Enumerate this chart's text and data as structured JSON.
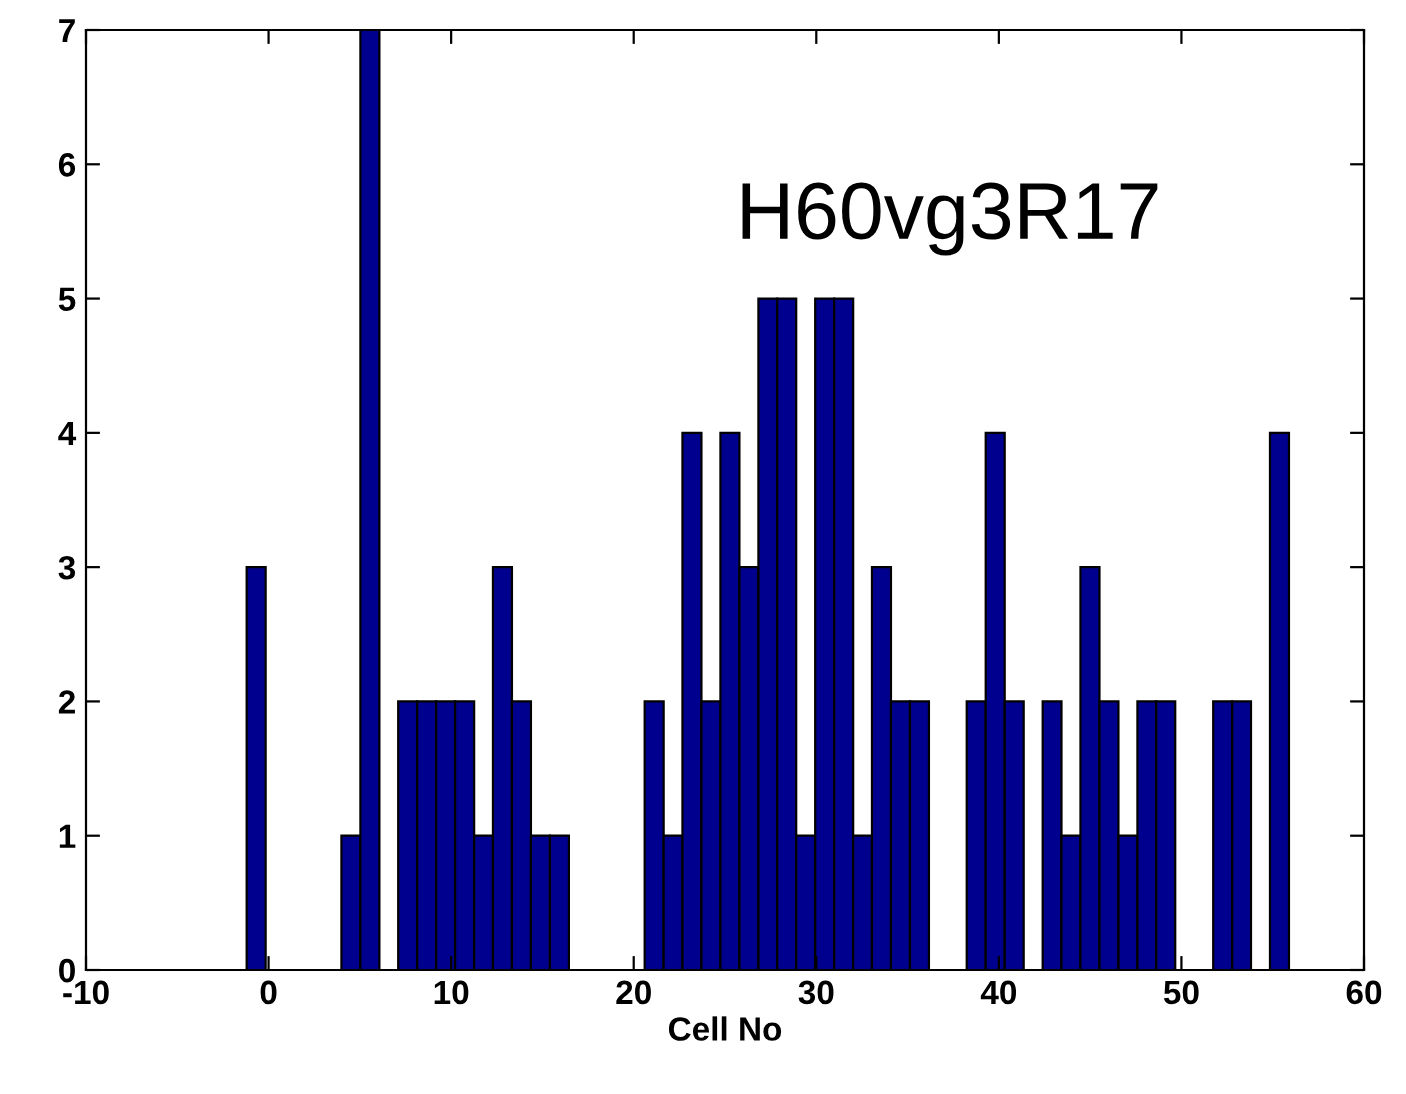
{
  "chart_data": {
    "type": "histogram",
    "xlabel": "Cell No",
    "color": "#00008f",
    "bins": [
      -1.2,
      -0.16,
      0.88,
      1.91,
      2.95,
      3.99,
      5.03,
      6.07,
      7.1,
      8.14,
      9.18,
      10.22,
      11.26,
      12.29,
      13.33,
      14.37,
      15.41,
      16.45,
      17.48,
      18.52,
      19.56,
      20.6,
      21.64,
      22.67,
      23.71,
      24.75,
      25.79,
      26.83,
      27.86,
      28.9,
      29.94,
      30.98,
      32.02,
      33.05,
      34.09,
      35.13,
      36.17,
      37.21,
      38.24,
      39.28,
      40.32,
      41.36,
      42.4,
      43.43,
      44.47,
      45.51,
      46.55,
      47.59,
      48.62,
      49.66,
      50.7,
      51.74,
      52.78,
      53.81,
      54.85,
      55.89
    ],
    "values": [
      3,
      0,
      0,
      0,
      0,
      1,
      7,
      0,
      2,
      2,
      2,
      2,
      1,
      3,
      2,
      1,
      1,
      0,
      0,
      0,
      0,
      2,
      1,
      4,
      2,
      4,
      3,
      5,
      5,
      1,
      5,
      5,
      1,
      3,
      2,
      2,
      0,
      0,
      2,
      4,
      2,
      0,
      2,
      1,
      3,
      2,
      1,
      2,
      2,
      0,
      0,
      2,
      2,
      0,
      4
    ],
    "xlim": [
      -10,
      60
    ],
    "xticks": [
      -10,
      0,
      10,
      20,
      30,
      40,
      50,
      60
    ],
    "ylim": [
      0,
      7
    ],
    "yticks": [
      0,
      1,
      2,
      3,
      4,
      5,
      6,
      7
    ],
    "annotations": [
      "H60vg3R17"
    ]
  }
}
